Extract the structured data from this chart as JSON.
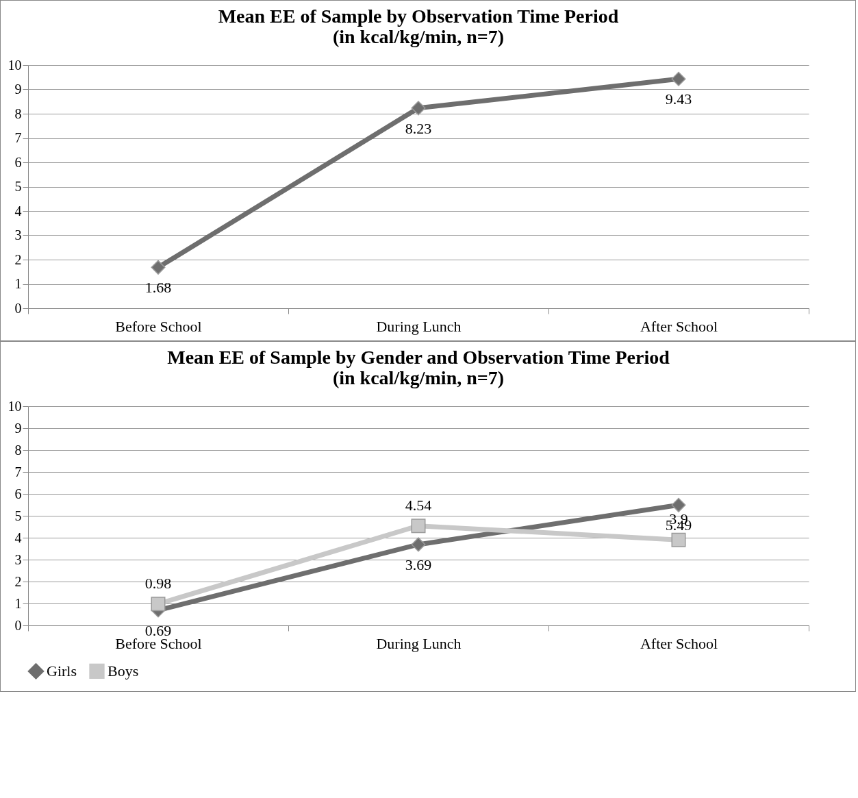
{
  "chart_data": [
    {
      "type": "line",
      "title": "Mean EE of Sample by Observation Time Period\n(in kcal/kg/min, n=7)",
      "categories": [
        "Before School",
        "During Lunch",
        "After School"
      ],
      "series": [
        {
          "color": "#6e6e6e",
          "values": [
            1.68,
            8.23,
            9.43
          ]
        }
      ],
      "ylim": [
        0,
        10
      ],
      "yticks": [
        0,
        1,
        2,
        3,
        4,
        5,
        6,
        7,
        8,
        9,
        10
      ],
      "grid": "y",
      "marker": "diamond",
      "data_labels": true,
      "legend": false
    },
    {
      "type": "line",
      "title": "Mean EE of Sample by Gender and Observation Time Period\n(in kcal/kg/min, n=7)",
      "categories": [
        "Before School",
        "During Lunch",
        "After School"
      ],
      "series": [
        {
          "name": "Girls",
          "color": "#6e6e6e",
          "marker": "diamond",
          "values": [
            0.69,
            3.69,
            5.49
          ]
        },
        {
          "name": "Boys",
          "color": "#c8c8c8",
          "marker": "square",
          "values": [
            0.98,
            4.54,
            3.9
          ]
        }
      ],
      "ylim": [
        0,
        10
      ],
      "yticks": [
        0,
        1,
        2,
        3,
        4,
        5,
        6,
        7,
        8,
        9,
        10
      ],
      "grid": "y",
      "data_labels": true,
      "legend": "bottom"
    }
  ]
}
